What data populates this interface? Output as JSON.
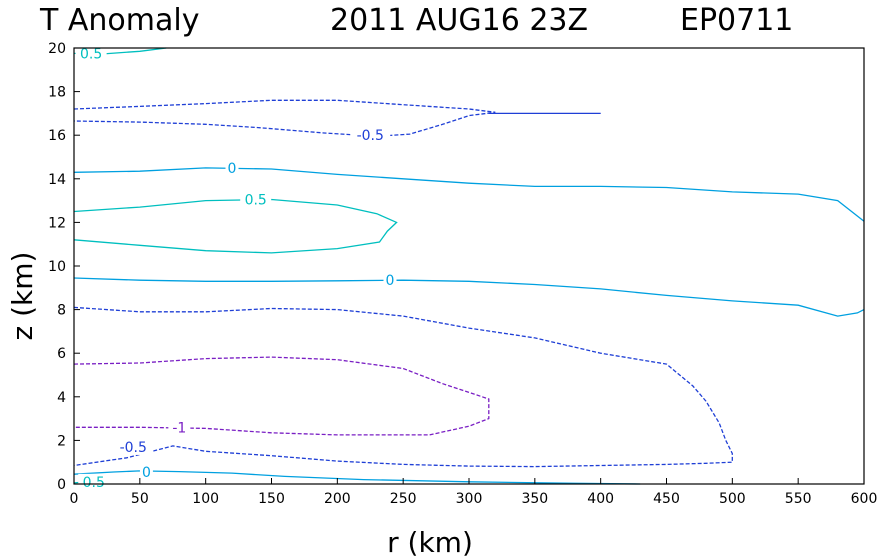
{
  "header": {
    "variable": "T Anomaly",
    "datetime": "2011 AUG16 23Z",
    "storm_id": "EP0711"
  },
  "chart_data": {
    "type": "contour",
    "xlabel": "r (km)",
    "ylabel": "z (km)",
    "xlim": [
      0,
      600
    ],
    "ylim": [
      0,
      20
    ],
    "xticks": [
      0,
      50,
      100,
      150,
      200,
      250,
      300,
      350,
      400,
      450,
      500,
      550,
      600
    ],
    "yticks": [
      0,
      2,
      4,
      6,
      8,
      10,
      12,
      14,
      16,
      18,
      20
    ],
    "xtick_labels": [
      "0",
      "50",
      "100",
      "150",
      "200",
      "250",
      "300",
      "350",
      "400",
      "450",
      "500",
      "550",
      "600"
    ],
    "ytick_labels": [
      "0",
      "2",
      "4",
      "6",
      "8",
      "10",
      "12",
      "14",
      "16",
      "18",
      "20"
    ],
    "grid": false,
    "contours": [
      {
        "level": 0.5,
        "label": "0.5",
        "color": "#00bfbf",
        "dashed": false,
        "label_at": [
          13,
          19.75
        ],
        "points": [
          [
            0,
            19.75
          ],
          [
            20,
            19.72
          ],
          [
            50,
            19.85
          ],
          [
            70,
            20
          ]
        ]
      },
      {
        "level": -0.5,
        "label": "-0.5",
        "color": "#1f3fd6",
        "dashed": true,
        "label_at": [
          225,
          16.0
        ],
        "points": [
          [
            0,
            17.2
          ],
          [
            40,
            17.3
          ],
          [
            100,
            17.45
          ],
          [
            150,
            17.6
          ],
          [
            200,
            17.6
          ],
          [
            250,
            17.4
          ],
          [
            300,
            17.2
          ],
          [
            320,
            17.05
          ],
          [
            300,
            16.9
          ],
          [
            280,
            16.5
          ],
          [
            255,
            16.05
          ],
          [
            230,
            15.95
          ],
          [
            190,
            16.1
          ],
          [
            140,
            16.35
          ],
          [
            100,
            16.5
          ],
          [
            50,
            16.6
          ],
          [
            0,
            16.65
          ]
        ]
      },
      {
        "level": 0,
        "label": "",
        "color": "#1f3fd6",
        "dashed": false,
        "points": [
          [
            315,
            17.0
          ],
          [
            400,
            17.0
          ]
        ]
      },
      {
        "level": 0,
        "label": "0",
        "color": "#00a0e0",
        "dashed": false,
        "label_at": [
          120,
          14.5
        ],
        "points": [
          [
            0,
            14.3
          ],
          [
            50,
            14.35
          ],
          [
            100,
            14.5
          ],
          [
            150,
            14.45
          ],
          [
            200,
            14.2
          ],
          [
            250,
            14.0
          ],
          [
            300,
            13.8
          ],
          [
            350,
            13.65
          ],
          [
            400,
            13.65
          ],
          [
            450,
            13.6
          ],
          [
            500,
            13.4
          ],
          [
            550,
            13.3
          ],
          [
            580,
            13.0
          ],
          [
            600,
            12.05
          ]
        ]
      },
      {
        "level": 0.5,
        "label": "0.5",
        "color": "#00bfbf",
        "dashed": false,
        "label_at": [
          138,
          13.05
        ],
        "points": [
          [
            0,
            12.5
          ],
          [
            50,
            12.7
          ],
          [
            100,
            13.0
          ],
          [
            150,
            13.05
          ],
          [
            200,
            12.8
          ],
          [
            230,
            12.4
          ],
          [
            245,
            12.0
          ],
          [
            238,
            11.6
          ],
          [
            232,
            11.1
          ],
          [
            200,
            10.8
          ],
          [
            150,
            10.6
          ],
          [
            100,
            10.7
          ],
          [
            50,
            10.95
          ],
          [
            0,
            11.2
          ]
        ]
      },
      {
        "level": 0,
        "label": "0",
        "color": "#00a0e0",
        "dashed": false,
        "label_at": [
          240,
          9.35
        ],
        "points": [
          [
            0,
            9.45
          ],
          [
            50,
            9.35
          ],
          [
            100,
            9.3
          ],
          [
            150,
            9.3
          ],
          [
            200,
            9.32
          ],
          [
            250,
            9.35
          ],
          [
            300,
            9.3
          ],
          [
            350,
            9.15
          ],
          [
            400,
            8.95
          ],
          [
            450,
            8.65
          ],
          [
            500,
            8.4
          ],
          [
            550,
            8.2
          ],
          [
            580,
            7.7
          ],
          [
            595,
            7.85
          ],
          [
            600,
            8.0
          ]
        ]
      },
      {
        "level": -0.5,
        "label": "-0.5",
        "color": "#1f3fd6",
        "dashed": true,
        "label_at": [
          45,
          1.7
        ],
        "points": [
          [
            0,
            8.1
          ],
          [
            50,
            7.9
          ],
          [
            100,
            7.9
          ],
          [
            150,
            8.05
          ],
          [
            200,
            8.0
          ],
          [
            250,
            7.7
          ],
          [
            300,
            7.15
          ],
          [
            350,
            6.7
          ],
          [
            400,
            6.0
          ],
          [
            450,
            5.5
          ],
          [
            470,
            4.5
          ],
          [
            480,
            3.8
          ],
          [
            490,
            2.8
          ],
          [
            495,
            2.0
          ],
          [
            500,
            1.4
          ],
          [
            500,
            1.0
          ],
          [
            480,
            0.95
          ],
          [
            450,
            0.9
          ],
          [
            400,
            0.85
          ],
          [
            350,
            0.8
          ],
          [
            300,
            0.82
          ],
          [
            250,
            0.9
          ],
          [
            200,
            1.05
          ],
          [
            150,
            1.3
          ],
          [
            100,
            1.5
          ],
          [
            75,
            1.75
          ],
          [
            40,
            1.2
          ],
          [
            0,
            0.85
          ]
        ]
      },
      {
        "level": -1,
        "label": "-1",
        "color": "#7a1fc4",
        "dashed": true,
        "label_at": [
          80,
          2.6
        ],
        "points": [
          [
            0,
            5.5
          ],
          [
            50,
            5.55
          ],
          [
            100,
            5.75
          ],
          [
            150,
            5.82
          ],
          [
            200,
            5.7
          ],
          [
            250,
            5.3
          ],
          [
            280,
            4.6
          ],
          [
            300,
            4.2
          ],
          [
            315,
            3.9
          ],
          [
            315,
            3.0
          ],
          [
            300,
            2.65
          ],
          [
            270,
            2.25
          ],
          [
            200,
            2.25
          ],
          [
            150,
            2.35
          ],
          [
            100,
            2.55
          ],
          [
            50,
            2.6
          ],
          [
            0,
            2.6
          ]
        ]
      },
      {
        "level": 0,
        "label": "0",
        "color": "#00a0e0",
        "dashed": false,
        "label_at": [
          55,
          0.55
        ],
        "points": [
          [
            0,
            0.45
          ],
          [
            30,
            0.55
          ],
          [
            50,
            0.6
          ],
          [
            80,
            0.57
          ],
          [
            120,
            0.5
          ],
          [
            160,
            0.35
          ],
          [
            220,
            0.2
          ],
          [
            300,
            0.1
          ],
          [
            380,
            0.03
          ],
          [
            430,
            0.0
          ]
        ]
      },
      {
        "level": 0.5,
        "label": "0.5",
        "color": "#00bfbf",
        "dashed": false,
        "label_at": [
          15,
          0.1
        ],
        "points": [
          [
            0,
            0.05
          ],
          [
            10,
            0.1
          ]
        ]
      }
    ]
  }
}
